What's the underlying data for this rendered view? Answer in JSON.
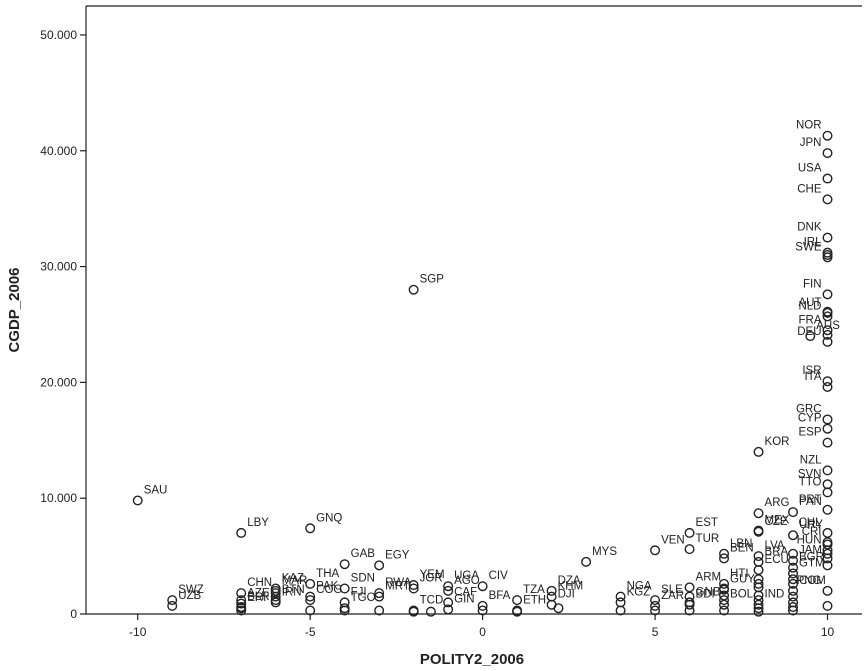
{
  "chart_data": {
    "type": "scatter",
    "title": "",
    "xlabel": "POLITY2_2006",
    "ylabel": "CGDP_2006",
    "xlim": [
      -11.5,
      11
    ],
    "ylim": [
      0,
      52500
    ],
    "x_ticks": [
      -10,
      -5,
      0,
      5,
      10
    ],
    "x_tick_labels": [
      "-10",
      "-5",
      "0",
      "5",
      "10"
    ],
    "y_ticks": [
      0,
      10000,
      20000,
      30000,
      40000,
      50000
    ],
    "y_tick_labels": [
      "0",
      "10.000",
      "20.000",
      "30.000",
      "40.000",
      "50.000"
    ],
    "grid": false,
    "legend": "none",
    "marker": "open-circle",
    "labeled_points": [
      {
        "label": "NOR",
        "x": 10,
        "y": 41300
      },
      {
        "label": "JPN",
        "x": 10,
        "y": 39800
      },
      {
        "label": "USA",
        "x": 10,
        "y": 37600
      },
      {
        "label": "CHE",
        "x": 10,
        "y": 35800
      },
      {
        "label": "DNK",
        "x": 10,
        "y": 32500
      },
      {
        "label": "IRL",
        "x": 10,
        "y": 31200
      },
      {
        "label": "SWE",
        "x": 10,
        "y": 30800
      },
      {
        "label": "FIN",
        "x": 10,
        "y": 27600
      },
      {
        "label": "AUT",
        "x": 10,
        "y": 26000
      },
      {
        "label": "NLD",
        "x": 10,
        "y": 25700
      },
      {
        "label": "FRA",
        "x": 10,
        "y": 24500
      },
      {
        "label": "DEU",
        "x": 10,
        "y": 23500
      },
      {
        "label": "AUS",
        "x": 9.5,
        "y": 24000
      },
      {
        "label": "ISR",
        "x": 10,
        "y": 20100
      },
      {
        "label": "ITA",
        "x": 10,
        "y": 19600
      },
      {
        "label": "GRC",
        "x": 10,
        "y": 16800
      },
      {
        "label": "CYP",
        "x": 10,
        "y": 16000
      },
      {
        "label": "ESP",
        "x": 10,
        "y": 14800
      },
      {
        "label": "KOR",
        "x": 8,
        "y": 14000
      },
      {
        "label": "NZL",
        "x": 10,
        "y": 12400
      },
      {
        "label": "SVN",
        "x": 10,
        "y": 11200
      },
      {
        "label": "TTO",
        "x": 10,
        "y": 10500
      },
      {
        "label": "PRT",
        "x": 10,
        "y": 9000
      },
      {
        "label": "PAN",
        "x": 9,
        "y": 8800
      },
      {
        "label": "ARG",
        "x": 8,
        "y": 8700
      },
      {
        "label": "CHL",
        "x": 10,
        "y": 7000
      },
      {
        "label": "MEX",
        "x": 8,
        "y": 7200
      },
      {
        "label": "CZE",
        "x": 8,
        "y": 7100
      },
      {
        "label": "URY",
        "x": 9,
        "y": 6800
      },
      {
        "label": "CRI",
        "x": 10,
        "y": 6200
      },
      {
        "label": "EST",
        "x": 6,
        "y": 7000
      },
      {
        "label": "LBN",
        "x": 7,
        "y": 5200
      },
      {
        "label": "LVA",
        "x": 8,
        "y": 5000
      },
      {
        "label": "VEN",
        "x": 5,
        "y": 5500
      },
      {
        "label": "TUR",
        "x": 6,
        "y": 5600
      },
      {
        "label": "BEN",
        "x": 7,
        "y": 4800
      },
      {
        "label": "JAM",
        "x": 9,
        "y": 4600
      },
      {
        "label": "BRA",
        "x": 8,
        "y": 4500
      },
      {
        "label": "HUN",
        "x": 10,
        "y": 5500
      },
      {
        "label": "BGR",
        "x": 9,
        "y": 4000
      },
      {
        "label": "ECU",
        "x": 8,
        "y": 3800
      },
      {
        "label": "GTM",
        "x": 9,
        "y": 3500
      },
      {
        "label": "PNG",
        "x": 10,
        "y": 2000
      },
      {
        "label": "HTI",
        "x": 7,
        "y": 2600
      },
      {
        "label": "ARM",
        "x": 6,
        "y": 2300
      },
      {
        "label": "GUY",
        "x": 7,
        "y": 2100
      },
      {
        "label": "MYS",
        "x": 3,
        "y": 4500
      },
      {
        "label": "SLE",
        "x": 5,
        "y": 1200
      },
      {
        "label": "GNB",
        "x": 6,
        "y": 1000
      },
      {
        "label": "COM",
        "x": 9,
        "y": 2000
      },
      {
        "label": "NGA",
        "x": 4,
        "y": 1500
      },
      {
        "label": "DZA",
        "x": 2,
        "y": 2000
      },
      {
        "label": "KHM",
        "x": 2,
        "y": 1500
      },
      {
        "label": "BDI",
        "x": 6,
        "y": 800
      },
      {
        "label": "BOL",
        "x": 7,
        "y": 800
      },
      {
        "label": "IND",
        "x": 8,
        "y": 800
      },
      {
        "label": "KGZ",
        "x": 4,
        "y": 1000
      },
      {
        "label": "ZAR",
        "x": 5,
        "y": 700
      },
      {
        "label": "DJI",
        "x": 2,
        "y": 800
      },
      {
        "label": "TZA",
        "x": 1,
        "y": 1200
      },
      {
        "label": "ETH",
        "x": 1,
        "y": 300
      },
      {
        "label": "BFA",
        "x": 0,
        "y": 700
      },
      {
        "label": "AGO",
        "x": -1,
        "y": 2000
      },
      {
        "label": "CIV",
        "x": 0,
        "y": 2400
      },
      {
        "label": "UGA",
        "x": -1,
        "y": 2400
      },
      {
        "label": "CAF",
        "x": -1,
        "y": 1000
      },
      {
        "label": "GIN",
        "x": -1,
        "y": 400
      },
      {
        "label": "YEM",
        "x": -2,
        "y": 2500
      },
      {
        "label": "JOR",
        "x": -2,
        "y": 2200
      },
      {
        "label": "TCD",
        "x": -2,
        "y": 300
      },
      {
        "label": "SGP",
        "x": -2,
        "y": 28000
      },
      {
        "label": "MRT",
        "x": -3,
        "y": 1500
      },
      {
        "label": "RWA",
        "x": -3,
        "y": 1800
      },
      {
        "label": "EGY",
        "x": -3,
        "y": 4200
      },
      {
        "label": "GAB",
        "x": -4,
        "y": 4300
      },
      {
        "label": "SDN",
        "x": -4,
        "y": 2200
      },
      {
        "label": "FJI",
        "x": -4,
        "y": 1000
      },
      {
        "label": "TGO",
        "x": -4,
        "y": 500
      },
      {
        "label": "COG",
        "x": -5,
        "y": 1200
      },
      {
        "label": "THA",
        "x": -5,
        "y": 2600
      },
      {
        "label": "PAK",
        "x": -5,
        "y": 1500
      },
      {
        "label": "GNQ",
        "x": -5,
        "y": 7400
      },
      {
        "label": "KAZ",
        "x": -6,
        "y": 2200
      },
      {
        "label": "BTN",
        "x": -6,
        "y": 1200
      },
      {
        "label": "IRN",
        "x": -6,
        "y": 1000
      },
      {
        "label": "MAR",
        "x": -6,
        "y": 2000
      },
      {
        "label": "LBY",
        "x": -7,
        "y": 7000
      },
      {
        "label": "CHN",
        "x": -7,
        "y": 1800
      },
      {
        "label": "ERI",
        "x": -7,
        "y": 500
      },
      {
        "label": "AZE",
        "x": -7,
        "y": 900
      },
      {
        "label": "SWZ",
        "x": -9,
        "y": 1200
      },
      {
        "label": "UZB",
        "x": -9,
        "y": 700
      },
      {
        "label": "BLR",
        "x": -7,
        "y": 600
      },
      {
        "label": "SAU",
        "x": -10,
        "y": 9800
      }
    ],
    "unlabeled_points": [
      {
        "x": -7,
        "y": 300
      },
      {
        "x": -7,
        "y": 1200
      },
      {
        "x": -6,
        "y": 1500
      },
      {
        "x": -6,
        "y": 1800
      },
      {
        "x": -5,
        "y": 300
      },
      {
        "x": -4,
        "y": 300
      },
      {
        "x": -3,
        "y": 300
      },
      {
        "x": -2,
        "y": 200
      },
      {
        "x": -1.5,
        "y": 200
      },
      {
        "x": 0,
        "y": 300
      },
      {
        "x": 1,
        "y": 200
      },
      {
        "x": 2.2,
        "y": 500
      },
      {
        "x": 4,
        "y": 300
      },
      {
        "x": 5,
        "y": 300
      },
      {
        "x": 6,
        "y": 300
      },
      {
        "x": 6,
        "y": 1500
      },
      {
        "x": 7,
        "y": 300
      },
      {
        "x": 7,
        "y": 1200
      },
      {
        "x": 7,
        "y": 2200
      },
      {
        "x": 7,
        "y": 1600
      },
      {
        "x": 8,
        "y": 200
      },
      {
        "x": 8,
        "y": 500
      },
      {
        "x": 8,
        "y": 1200
      },
      {
        "x": 8,
        "y": 1600
      },
      {
        "x": 8,
        "y": 2300
      },
      {
        "x": 8,
        "y": 2600
      },
      {
        "x": 8,
        "y": 3000
      },
      {
        "x": 9,
        "y": 300
      },
      {
        "x": 9,
        "y": 600
      },
      {
        "x": 9,
        "y": 1000
      },
      {
        "x": 9,
        "y": 1500
      },
      {
        "x": 9,
        "y": 2600
      },
      {
        "x": 9,
        "y": 3000
      },
      {
        "x": 9,
        "y": 5200
      },
      {
        "x": 10,
        "y": 4200
      },
      {
        "x": 10,
        "y": 4800
      },
      {
        "x": 10,
        "y": 5200
      },
      {
        "x": 10,
        "y": 6000
      },
      {
        "x": 10,
        "y": 700
      },
      {
        "x": 10,
        "y": 24100
      },
      {
        "x": 10,
        "y": 26100
      },
      {
        "x": 10,
        "y": 31000
      }
    ]
  }
}
